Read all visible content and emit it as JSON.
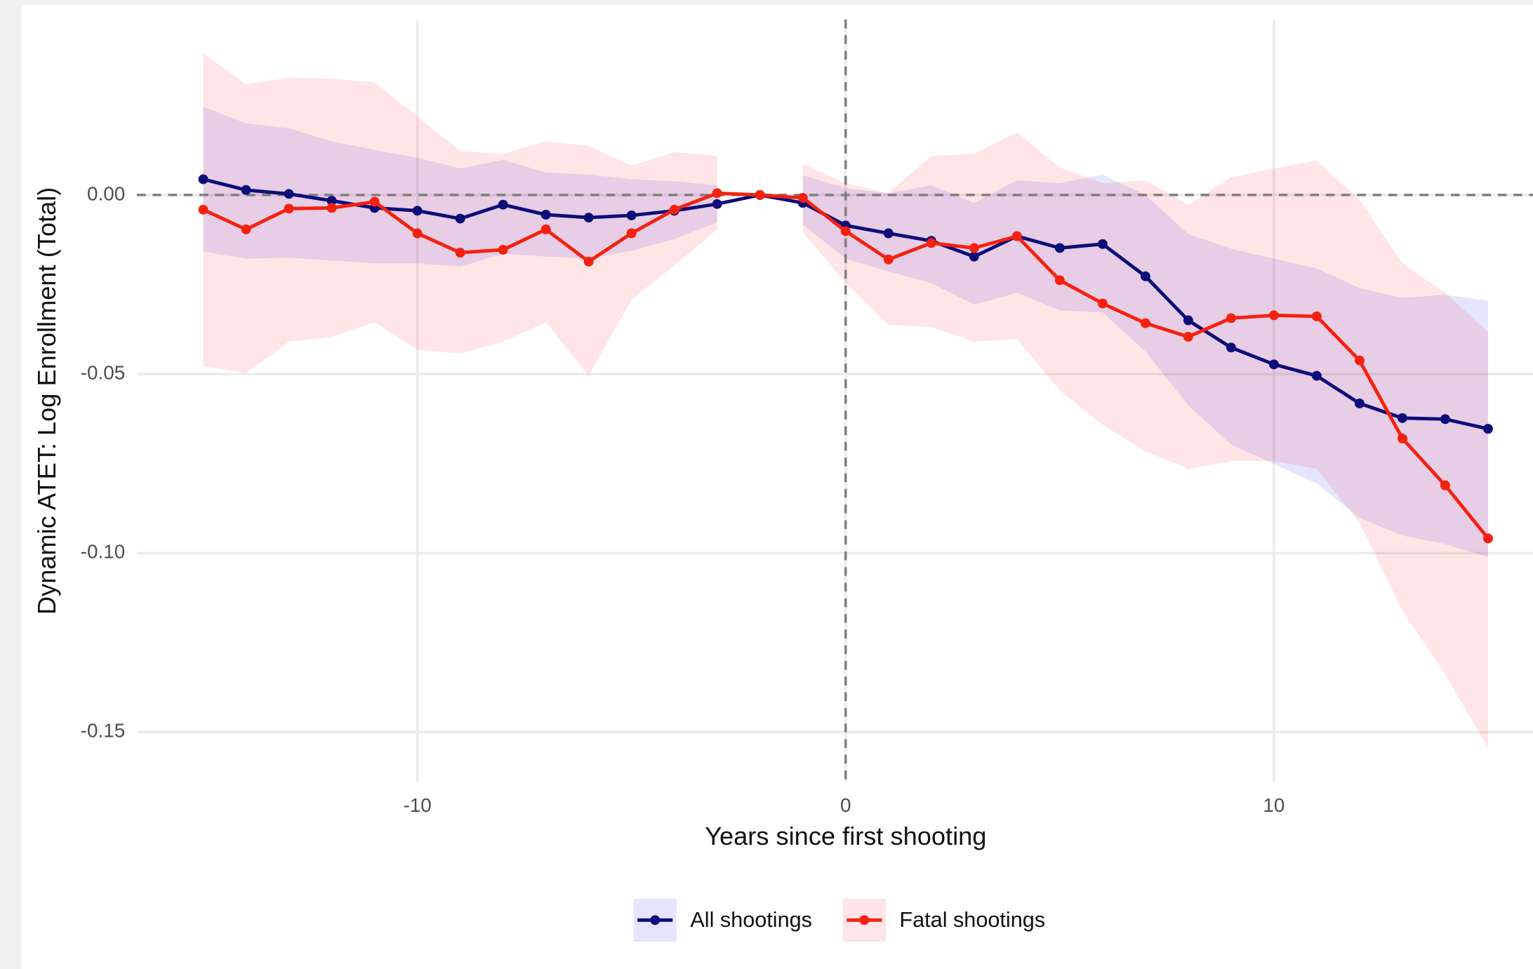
{
  "chart_data": {
    "type": "line",
    "x_label": "Years since first shooting",
    "y_label": "Dynamic ATET: Log Enrollment (Total)",
    "x": [
      -15,
      -14,
      -13,
      -12,
      -11,
      -10,
      -9,
      -8,
      -7,
      -6,
      -5,
      -4,
      -3,
      -2,
      -1,
      0,
      1,
      2,
      3,
      4,
      5,
      6,
      7,
      8,
      9,
      10,
      11,
      12,
      13,
      14,
      15
    ],
    "series": [
      {
        "name": "All shootings",
        "color": "#0d0d7a",
        "band_color": "#0000ff",
        "values": [
          0.0044,
          0.0014,
          0.0003,
          -0.0016,
          -0.0036,
          -0.0044,
          -0.0066,
          -0.0027,
          -0.0055,
          -0.0063,
          -0.0057,
          -0.0044,
          -0.0025,
          0,
          -0.0022,
          -0.0085,
          -0.0107,
          -0.0128,
          -0.0172,
          -0.0115,
          -0.0148,
          -0.0137,
          -0.0227,
          -0.035,
          -0.0426,
          -0.0473,
          -0.0505,
          -0.0582,
          -0.0623,
          -0.0626,
          -0.0653
        ],
        "upper": [
          0.0246,
          0.02,
          0.0186,
          0.015,
          0.0126,
          0.0104,
          0.0074,
          0.0098,
          0.0063,
          0.0057,
          0.0044,
          0.0038,
          0.0027,
          null,
          0.0055,
          0.0019,
          0.0005,
          0.0027,
          -0.0022,
          0.0041,
          0.0033,
          0.0057,
          0,
          -0.0109,
          -0.015,
          -0.0178,
          -0.0205,
          -0.026,
          -0.0287,
          -0.0279,
          -0.0295
        ],
        "lower": [
          -0.0158,
          -0.0178,
          -0.0175,
          -0.0183,
          -0.0191,
          -0.0191,
          -0.02,
          -0.0164,
          -0.0172,
          -0.0178,
          -0.0156,
          -0.0123,
          -0.0077,
          null,
          -0.0082,
          -0.0178,
          -0.0213,
          -0.0246,
          -0.0306,
          -0.0273,
          -0.0322,
          -0.0328,
          -0.0437,
          -0.0587,
          -0.0697,
          -0.0751,
          -0.0806,
          -0.0902,
          -0.0951,
          -0.0975,
          -0.1011
        ]
      },
      {
        "name": "Fatal shootings",
        "color": "#f5210f",
        "band_color": "#ff0000",
        "values": [
          -0.0041,
          -0.0096,
          -0.0038,
          -0.0036,
          -0.0019,
          -0.0107,
          -0.0161,
          -0.0153,
          -0.0096,
          -0.0186,
          -0.0107,
          -0.0041,
          0.0005,
          0,
          -0.0008,
          -0.0101,
          -0.018,
          -0.0134,
          -0.0148,
          -0.0115,
          -0.0238,
          -0.0303,
          -0.0358,
          -0.0396,
          -0.0344,
          -0.0336,
          -0.0339,
          -0.0462,
          -0.068,
          -0.0811,
          -0.0959
        ],
        "upper": [
          0.0396,
          0.0309,
          0.0328,
          0.0325,
          0.0314,
          0.0219,
          0.0123,
          0.0115,
          0.015,
          0.0137,
          0.0082,
          0.012,
          0.0109,
          null,
          0.0087,
          0.0033,
          0.0005,
          0.0109,
          0.0115,
          0.0175,
          0.0077,
          0.0033,
          0.0041,
          -0.0027,
          0.0049,
          0.0074,
          0.0096,
          -0.0014,
          -0.0191,
          -0.0273,
          -0.0383
        ],
        "lower": [
          -0.0478,
          -0.0497,
          -0.041,
          -0.0396,
          -0.0355,
          -0.0432,
          -0.0443,
          -0.041,
          -0.0355,
          -0.0505,
          -0.0292,
          -0.0197,
          -0.0096,
          null,
          -0.0104,
          -0.0246,
          -0.0363,
          -0.0369,
          -0.041,
          -0.0402,
          -0.0546,
          -0.0642,
          -0.0716,
          -0.0765,
          -0.0743,
          -0.0743,
          -0.0765,
          -0.0915,
          -0.1161,
          -0.1339,
          -0.1544
        ]
      }
    ],
    "xlim": [
      -16.55,
      16.05
    ],
    "ylim": [
      -0.164,
      0.049
    ],
    "xticks": [
      -10,
      0,
      10
    ],
    "yticks": [
      {
        "value": 0,
        "label": "0.00"
      },
      {
        "value": -0.05,
        "label": "-0.05"
      },
      {
        "value": -0.1,
        "label": "-0.10"
      },
      {
        "value": -0.15,
        "label": "-0.15"
      }
    ],
    "reference_lines": {
      "x": 0,
      "y": 0
    },
    "grid": true,
    "legend": "bottom"
  }
}
